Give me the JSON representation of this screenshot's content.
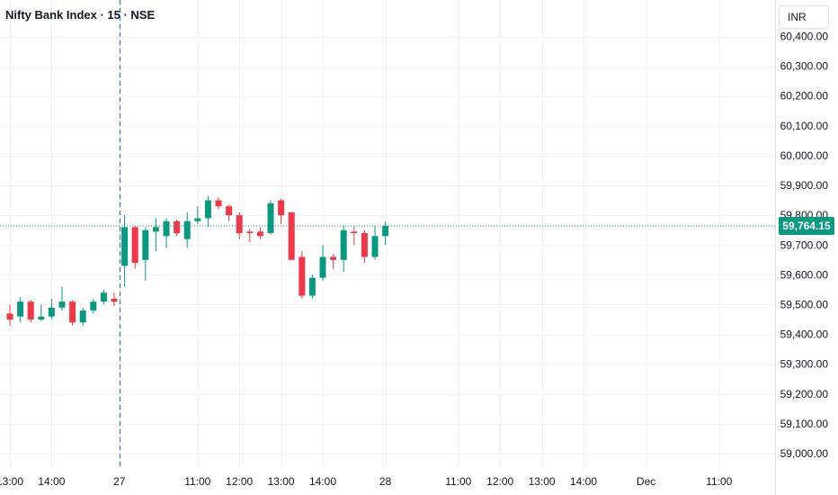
{
  "header": {
    "title": "Nifty Bank Index · 15 · NSE",
    "currency": "INR"
  },
  "colors": {
    "up": "#089981",
    "down": "#f23645",
    "grid": "#f0f3fa",
    "crosshair": "#2962ff",
    "last_price_line": "#089981"
  },
  "chart_data": {
    "type": "candlestick",
    "title": "Nifty Bank Index · 15 · NSE",
    "symbol": "Nifty Bank Index",
    "interval": "15",
    "exchange": "NSE",
    "currency": "INR",
    "ylim": [
      58930,
      60470
    ],
    "y_ticks": [
      59000,
      59100,
      59200,
      59300,
      59400,
      59500,
      59600,
      59700,
      59800,
      59900,
      60000,
      60100,
      60200,
      60300,
      60400
    ],
    "y_tick_labels": [
      "59,000.00",
      "59,100.00",
      "59,200.00",
      "59,300.00",
      "59,400.00",
      "59,500.00",
      "59,600.00",
      "59,700.00",
      "59,800.00",
      "59,900.00",
      "60,000.00",
      "60,100.00",
      "60,200.00",
      "60,300.00",
      "60,400.00"
    ],
    "x_ticks": [
      {
        "label": "13:00",
        "bar": 0
      },
      {
        "label": "14:00",
        "bar": 4
      },
      {
        "label": "27",
        "bar": 10.5
      },
      {
        "label": "11:00",
        "bar": 18
      },
      {
        "label": "12:00",
        "bar": 22
      },
      {
        "label": "13:00",
        "bar": 26
      },
      {
        "label": "14:00",
        "bar": 30
      },
      {
        "label": "28",
        "bar": 36
      },
      {
        "label": "11:00",
        "bar": 43
      },
      {
        "label": "12:00",
        "bar": 47
      },
      {
        "label": "13:00",
        "bar": 51
      },
      {
        "label": "14:00",
        "bar": 55
      },
      {
        "label": "Dec",
        "bar": 61
      },
      {
        "label": "11:00",
        "bar": 68
      }
    ],
    "crosshair_bar": 10.5,
    "last_price": 59764.15,
    "last_price_label": "59,764.15",
    "candles": [
      {
        "o": 59470,
        "h": 59500,
        "l": 59430,
        "c": 59450
      },
      {
        "o": 59460,
        "h": 59525,
        "l": 59440,
        "c": 59510
      },
      {
        "o": 59510,
        "h": 59515,
        "l": 59440,
        "c": 59450
      },
      {
        "o": 59450,
        "h": 59500,
        "l": 59445,
        "c": 59460
      },
      {
        "o": 59460,
        "h": 59520,
        "l": 59450,
        "c": 59490
      },
      {
        "o": 59490,
        "h": 59560,
        "l": 59480,
        "c": 59510
      },
      {
        "o": 59510,
        "h": 59515,
        "l": 59430,
        "c": 59440
      },
      {
        "o": 59440,
        "h": 59490,
        "l": 59430,
        "c": 59480
      },
      {
        "o": 59480,
        "h": 59520,
        "l": 59470,
        "c": 59510
      },
      {
        "o": 59510,
        "h": 59550,
        "l": 59500,
        "c": 59540
      },
      {
        "o": 59520,
        "h": 59540,
        "l": 59495,
        "c": 59510
      },
      {
        "o": 59630,
        "h": 59800,
        "l": 59560,
        "c": 59760
      },
      {
        "o": 59760,
        "h": 59765,
        "l": 59620,
        "c": 59640
      },
      {
        "o": 59650,
        "h": 59760,
        "l": 59580,
        "c": 59750
      },
      {
        "o": 59745,
        "h": 59790,
        "l": 59680,
        "c": 59760
      },
      {
        "o": 59730,
        "h": 59790,
        "l": 59690,
        "c": 59780
      },
      {
        "o": 59780,
        "h": 59785,
        "l": 59730,
        "c": 59740
      },
      {
        "o": 59720,
        "h": 59810,
        "l": 59690,
        "c": 59780
      },
      {
        "o": 59780,
        "h": 59830,
        "l": 59770,
        "c": 59790
      },
      {
        "o": 59790,
        "h": 59865,
        "l": 59760,
        "c": 59850
      },
      {
        "o": 59850,
        "h": 59860,
        "l": 59820,
        "c": 59830
      },
      {
        "o": 59830,
        "h": 59835,
        "l": 59780,
        "c": 59800
      },
      {
        "o": 59800,
        "h": 59810,
        "l": 59720,
        "c": 59740
      },
      {
        "o": 59745,
        "h": 59755,
        "l": 59710,
        "c": 59740
      },
      {
        "o": 59745,
        "h": 59760,
        "l": 59720,
        "c": 59730
      },
      {
        "o": 59740,
        "h": 59850,
        "l": 59735,
        "c": 59840
      },
      {
        "o": 59850,
        "h": 59855,
        "l": 59770,
        "c": 59800
      },
      {
        "o": 59810,
        "h": 59810,
        "l": 59650,
        "c": 59650
      },
      {
        "o": 59660,
        "h": 59680,
        "l": 59520,
        "c": 59530
      },
      {
        "o": 59530,
        "h": 59600,
        "l": 59520,
        "c": 59590
      },
      {
        "o": 59590,
        "h": 59700,
        "l": 59580,
        "c": 59660
      },
      {
        "o": 59660,
        "h": 59670,
        "l": 59620,
        "c": 59650
      },
      {
        "o": 59650,
        "h": 59765,
        "l": 59610,
        "c": 59750
      },
      {
        "o": 59745,
        "h": 59765,
        "l": 59700,
        "c": 59740
      },
      {
        "o": 59740,
        "h": 59750,
        "l": 59640,
        "c": 59660
      },
      {
        "o": 59660,
        "h": 59765,
        "l": 59650,
        "c": 59730
      },
      {
        "o": 59730,
        "h": 59780,
        "l": 59700,
        "c": 59764.15
      }
    ]
  }
}
